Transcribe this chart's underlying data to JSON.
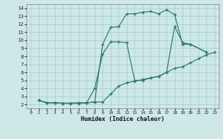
{
  "xlabel": "Humidex (Indice chaleur)",
  "bg_color": "#cde8e6",
  "grid_color": "#aacfcd",
  "line_color": "#2a7a6a",
  "xlim": [
    -0.5,
    23.5
  ],
  "ylim": [
    1.5,
    14.5
  ],
  "xticks": [
    0,
    1,
    2,
    3,
    4,
    5,
    6,
    7,
    8,
    9,
    10,
    11,
    12,
    13,
    14,
    15,
    16,
    17,
    18,
    19,
    20,
    21,
    22,
    23
  ],
  "yticks": [
    2,
    3,
    4,
    5,
    6,
    7,
    8,
    9,
    10,
    11,
    12,
    13,
    14
  ],
  "curve1_x": [
    1,
    2,
    3,
    4,
    5,
    6,
    7,
    8,
    9,
    10,
    11,
    12,
    13,
    14,
    15,
    16,
    17,
    18,
    19,
    20,
    22
  ],
  "curve1_y": [
    2.5,
    2.2,
    2.2,
    2.15,
    2.15,
    2.15,
    2.2,
    2.3,
    9.5,
    11.6,
    11.7,
    13.3,
    13.3,
    13.5,
    13.6,
    13.3,
    13.8,
    13.2,
    9.5,
    9.5,
    8.5
  ],
  "curve2_x": [
    1,
    2,
    3,
    4,
    5,
    6,
    7,
    8,
    9,
    10,
    11,
    12,
    13,
    14,
    15,
    16,
    17,
    18,
    19,
    20,
    22
  ],
  "curve2_y": [
    2.5,
    2.2,
    2.2,
    2.15,
    2.15,
    2.15,
    2.2,
    4.0,
    8.3,
    9.8,
    9.8,
    9.7,
    5.0,
    5.0,
    5.3,
    5.5,
    6.0,
    11.7,
    9.7,
    9.5,
    8.5
  ],
  "curve3_x": [
    1,
    2,
    3,
    4,
    5,
    6,
    7,
    8,
    9,
    10,
    11,
    12,
    13,
    14,
    15,
    16,
    17,
    18,
    19,
    20,
    21,
    22,
    23
  ],
  "curve3_y": [
    2.5,
    2.2,
    2.2,
    2.15,
    2.15,
    2.2,
    2.2,
    2.3,
    2.3,
    3.3,
    4.3,
    4.7,
    4.9,
    5.1,
    5.3,
    5.5,
    6.0,
    6.5,
    6.7,
    7.2,
    7.7,
    8.2,
    8.5
  ]
}
